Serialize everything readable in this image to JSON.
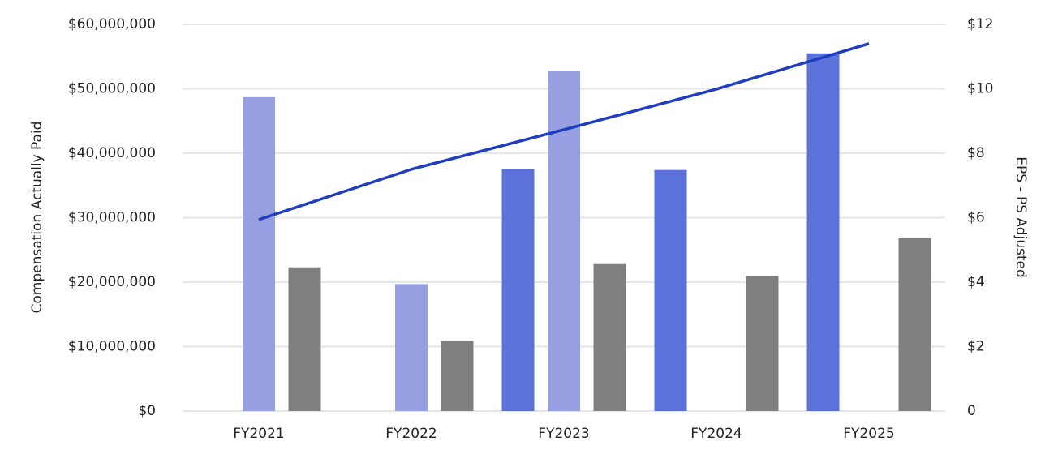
{
  "chart_data": {
    "type": "bar",
    "y_label": "Compensation Actually Paid",
    "y2_label": "EPS - PS Adjusted",
    "categories": [
      "FY2021",
      "FY2022",
      "FY2023",
      "FY2024",
      "FY2025"
    ],
    "series": [
      {
        "color": "#5b72da",
        "values": [
          null,
          null,
          37600000,
          37400000,
          55500000
        ]
      },
      {
        "color": "#969fdf",
        "values": [
          48700000,
          19700000,
          52700000,
          null,
          null
        ]
      },
      {
        "color": "#7f7f7f",
        "values": [
          22300000,
          10900000,
          22800000,
          21000000,
          26800000
        ]
      },
      {
        "type": "line",
        "axis": "y2",
        "color": "#1f3dbf",
        "values": [
          5.94,
          7.5,
          8.73,
          9.99,
          11.4
        ]
      }
    ],
    "ylim": [
      0,
      60000000
    ],
    "yticks": [
      {
        "value": 0,
        "label": "$0"
      },
      {
        "value": 10000000,
        "label": "$10,000,000"
      },
      {
        "value": 20000000,
        "label": "$20,000,000"
      },
      {
        "value": 30000000,
        "label": "$30,000,000"
      },
      {
        "value": 40000000,
        "label": "$40,000,000"
      },
      {
        "value": 50000000,
        "label": "$50,000,000"
      },
      {
        "value": 60000000,
        "label": "$60,000,000"
      }
    ],
    "y2lim": [
      0,
      12
    ],
    "y2ticks": [
      0,
      {
        "value": 2,
        "label": "$2"
      },
      {
        "value": 4,
        "label": "$4"
      },
      {
        "value": 6,
        "label": "$6"
      },
      {
        "value": 8,
        "label": "$8"
      },
      {
        "value": 10,
        "label": "$10"
      },
      {
        "value": 12,
        "label": "$12"
      }
    ],
    "grid": true
  }
}
